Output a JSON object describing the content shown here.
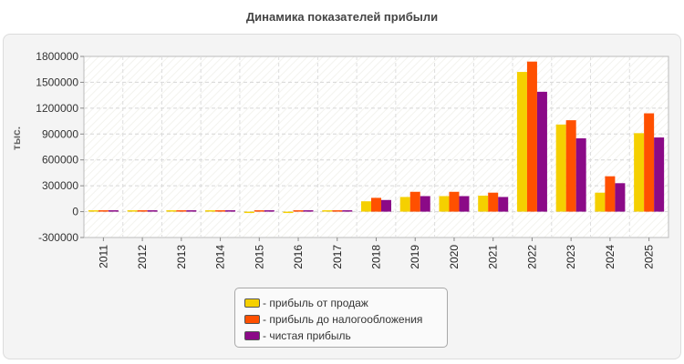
{
  "chart_data": {
    "type": "bar",
    "title": "Динамика показателей прибыли",
    "ylabel": "тыс.",
    "xlabel": "",
    "ylim": [
      -300000,
      1800000
    ],
    "yticks": [
      "1800000",
      "1500000",
      "1200000",
      "900000",
      "600000",
      "300000",
      "0",
      "-300000"
    ],
    "grid": true,
    "legend_position": "bottom-center",
    "categories": [
      "2011",
      "2012",
      "2013",
      "2014",
      "2015",
      "2016",
      "2017",
      "2018",
      "2019",
      "2020",
      "2021",
      "2022",
      "2023",
      "2024",
      "2025"
    ],
    "series": [
      {
        "name": "- прибыль от продаж",
        "color": "#f5d000",
        "values": [
          8000,
          7000,
          7000,
          6000,
          -5000,
          -7000,
          5000,
          120000,
          170000,
          180000,
          185000,
          1620000,
          1010000,
          220000,
          910000
        ]
      },
      {
        "name": "- прибыль до налогообложения",
        "color": "#ff5000",
        "values": [
          10000,
          10000,
          10000,
          10000,
          12000,
          12000,
          15000,
          160000,
          230000,
          230000,
          220000,
          1740000,
          1060000,
          410000,
          1140000
        ]
      },
      {
        "name": "- чистая прибыль",
        "color": "#8b0a87",
        "values": [
          9000,
          9000,
          9000,
          9000,
          10000,
          11000,
          14000,
          135000,
          180000,
          180000,
          170000,
          1390000,
          850000,
          330000,
          860000
        ]
      }
    ]
  }
}
